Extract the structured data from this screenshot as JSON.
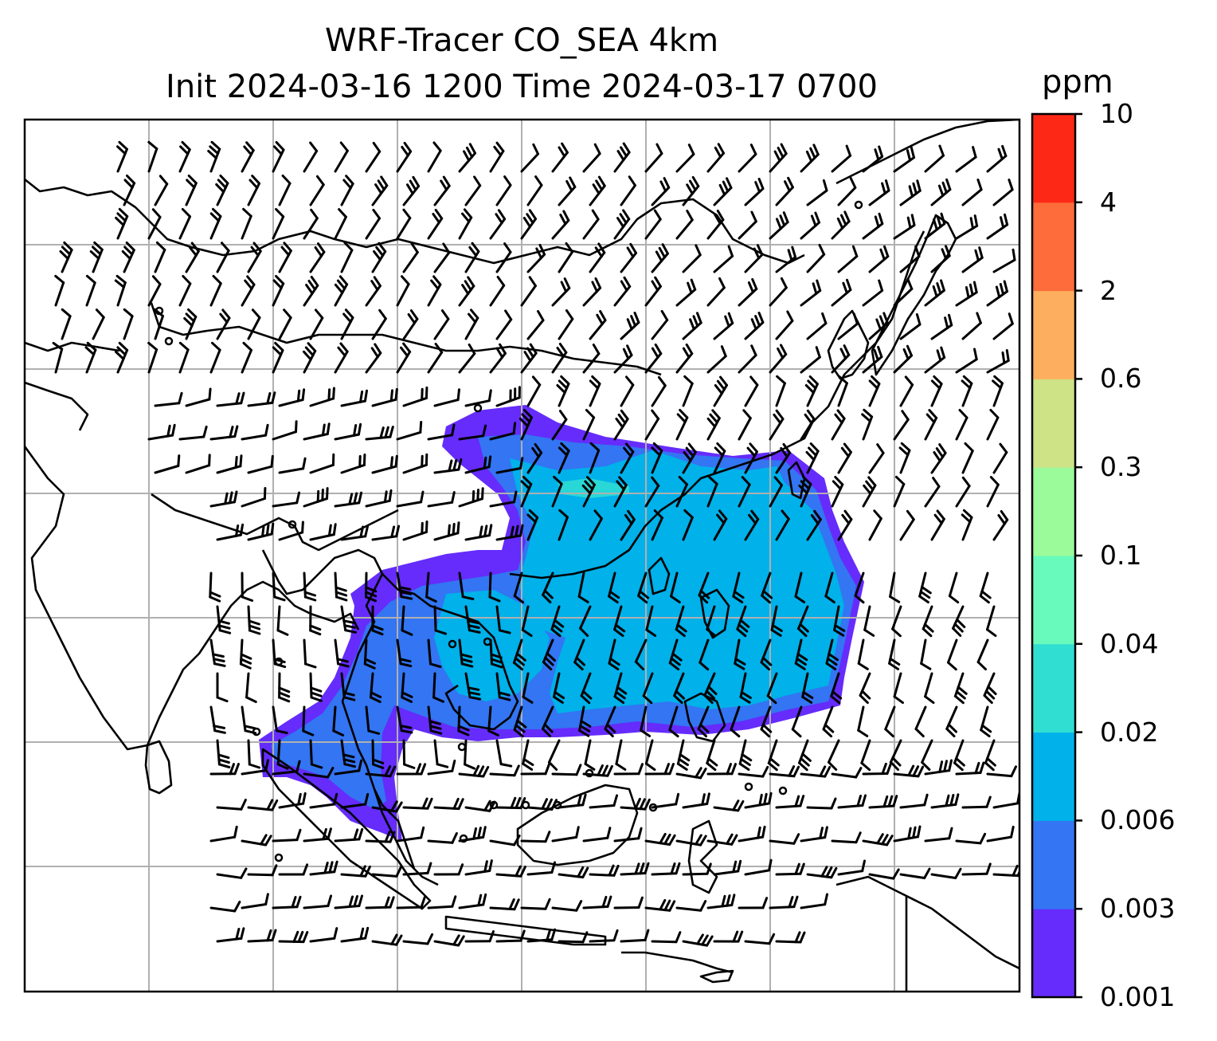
{
  "title_line1": "WRF-Tracer CO_SEA 4km",
  "title_line2": "Init 2024-03-16 1200 Time 2024-03-17 0700",
  "colorbar": {
    "unit": "ppm",
    "levels": [
      "0.001",
      "0.003",
      "0.006",
      "0.02",
      "0.04",
      "0.1",
      "0.3",
      "0.6",
      "2",
      "4",
      "10"
    ],
    "colors": [
      "#652cfc",
      "#3375f2",
      "#00b1ea",
      "#30ded2",
      "#68fabc",
      "#9bfa99",
      "#cee286",
      "#fdae5e",
      "#fd6c3a",
      "#fd2816"
    ]
  },
  "map": {
    "gridlines": true,
    "grid_color": "#b0b0b0",
    "coastline_color": "#000000",
    "wind_barbs": true
  }
}
